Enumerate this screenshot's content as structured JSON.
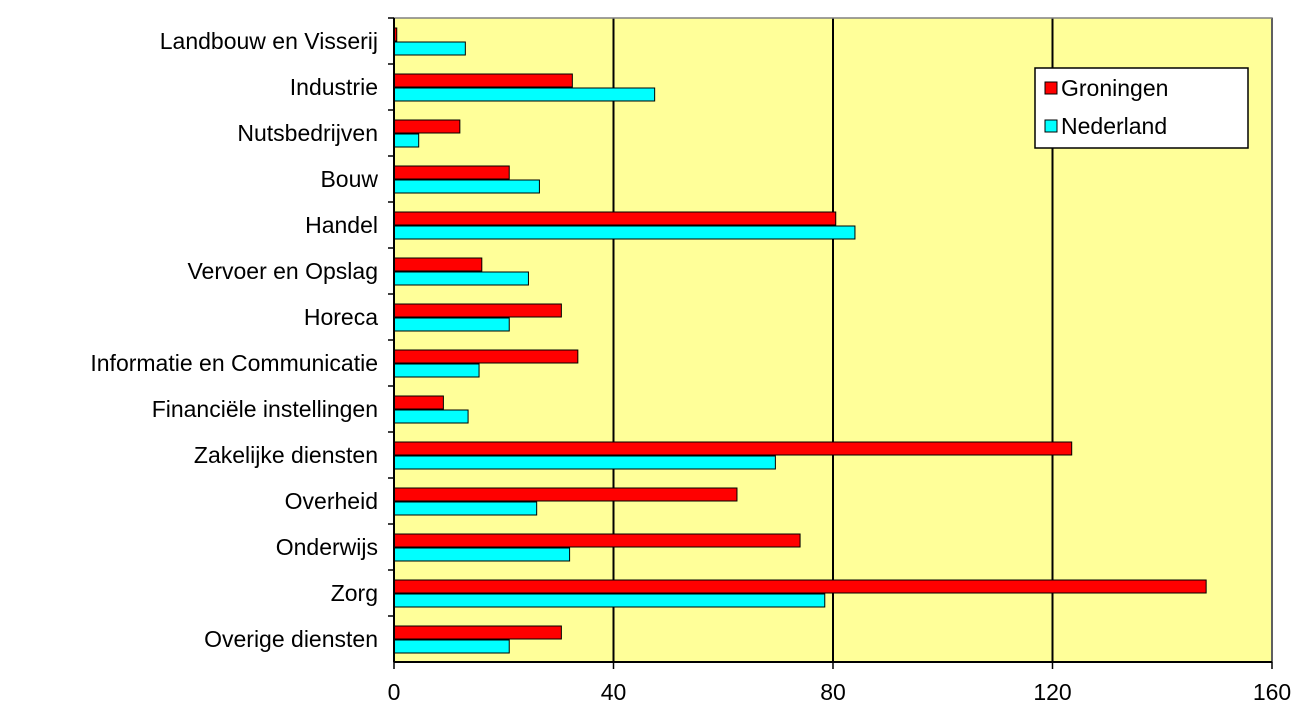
{
  "chart_data": {
    "type": "bar",
    "orientation": "horizontal",
    "title": "",
    "xlabel": "",
    "ylabel": "",
    "categories": [
      "Landbouw en Visserij",
      "Industrie",
      "Nutsbedrijven",
      "Bouw",
      "Handel",
      "Vervoer en Opslag",
      "Horeca",
      "Informatie en Communicatie",
      "Financiële instellingen",
      "Zakelijke diensten",
      "Overheid",
      "Onderwijs",
      "Zorg",
      "Overige diensten"
    ],
    "series": [
      {
        "name": "Groningen",
        "color": "#ff0000",
        "values": [
          0.5,
          32.5,
          12,
          21,
          80.5,
          16,
          30.5,
          33.5,
          9,
          123.5,
          62.5,
          74,
          148,
          30.5
        ]
      },
      {
        "name": "Nederland",
        "color": "#00ffff",
        "values": [
          13,
          47.5,
          4.5,
          26.5,
          84,
          24.5,
          21,
          15.5,
          13.5,
          69.5,
          26,
          32,
          78.5,
          21
        ]
      }
    ],
    "xlim": [
      0,
      160
    ],
    "xticks": [
      0,
      40,
      80,
      120,
      160
    ],
    "grid": "vertical",
    "legend_position": "top-right",
    "plot_background": "#ffff99",
    "gridline_color": "#000000"
  }
}
